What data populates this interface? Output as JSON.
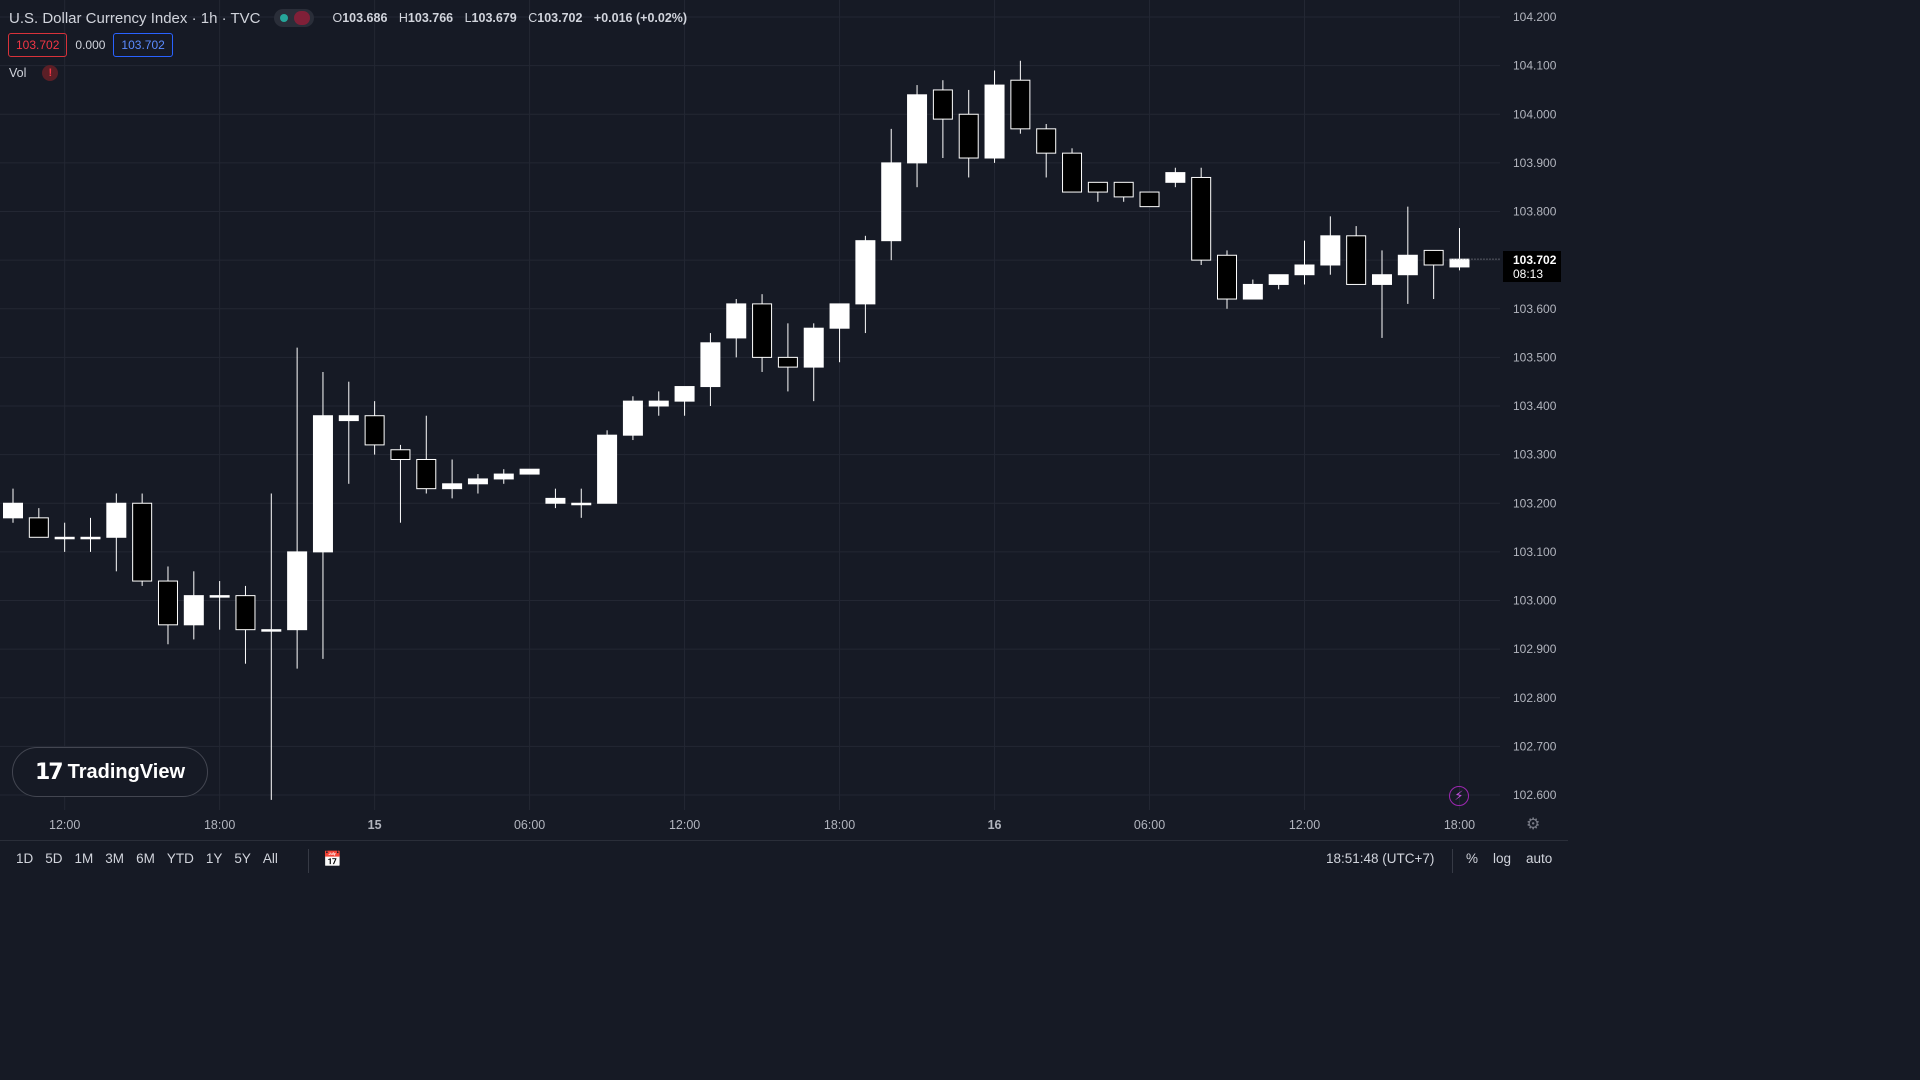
{
  "header": {
    "symbol_title": "U.S. Dollar Currency Index · 1h · TVC",
    "ohlc": {
      "o_label": "O",
      "o": "103.686",
      "h_label": "H",
      "h": "103.766",
      "l_label": "L",
      "l": "103.679",
      "c_label": "C",
      "c": "103.702",
      "change": "+0.016 (+0.02%)"
    },
    "bid": "103.702",
    "spread": "0.000",
    "ask": "103.702",
    "vol_label": "Vol",
    "warning_glyph": "!"
  },
  "logo": {
    "mark": "17",
    "name": "TradingView"
  },
  "price_label": {
    "price": "103.702",
    "countdown": "08:13"
  },
  "bottom_bar": {
    "ranges": [
      "1D",
      "5D",
      "1M",
      "3M",
      "6M",
      "YTD",
      "1Y",
      "5Y",
      "All"
    ],
    "time": "18:51:48 (UTC+7)",
    "options": [
      "%",
      "log",
      "auto"
    ]
  },
  "icons": {
    "calendar": "calendar-range-icon",
    "bolt": "lightning-icon",
    "gear": "settings-gear-icon"
  },
  "colors": {
    "background": "#161a25",
    "up_candle": "#ffffff",
    "down_candle": "#000000",
    "accent_red": "#f23645",
    "accent_blue": "#2962ff",
    "bolt": "#9c27b0"
  },
  "chart_data": {
    "type": "candlestick",
    "title": "U.S. Dollar Currency Index · 1h · TVC",
    "ylim": [
      102.6,
      104.2
    ],
    "y_ticks": [
      "104.200",
      "104.100",
      "104.000",
      "103.900",
      "103.800",
      "103.700",
      "103.600",
      "103.500",
      "103.400",
      "103.300",
      "103.200",
      "103.100",
      "103.000",
      "102.900",
      "102.800",
      "102.700",
      "102.600"
    ],
    "x_ticks": [
      "12:00",
      "18:00",
      "15",
      "06:00",
      "12:00",
      "18:00",
      "16",
      "06:00",
      "12:00",
      "18:00"
    ],
    "x_tick_bar_index": [
      2,
      8,
      14,
      20,
      26,
      32,
      38,
      44,
      50,
      56
    ],
    "grid": true,
    "current_price": 103.702,
    "candles": [
      {
        "o": 103.17,
        "h": 103.23,
        "l": 103.16,
        "c": 103.2
      },
      {
        "o": 103.17,
        "h": 103.19,
        "l": 103.13,
        "c": 103.13
      },
      {
        "o": 103.13,
        "h": 103.16,
        "l": 103.1,
        "c": 103.13
      },
      {
        "o": 103.13,
        "h": 103.17,
        "l": 103.1,
        "c": 103.13
      },
      {
        "o": 103.13,
        "h": 103.22,
        "l": 103.06,
        "c": 103.2
      },
      {
        "o": 103.2,
        "h": 103.22,
        "l": 103.03,
        "c": 103.04
      },
      {
        "o": 103.04,
        "h": 103.07,
        "l": 102.91,
        "c": 102.95
      },
      {
        "o": 102.95,
        "h": 103.06,
        "l": 102.92,
        "c": 103.01
      },
      {
        "o": 103.01,
        "h": 103.04,
        "l": 102.94,
        "c": 103.01
      },
      {
        "o": 103.01,
        "h": 103.03,
        "l": 102.87,
        "c": 102.94
      },
      {
        "o": 102.94,
        "h": 103.22,
        "l": 102.59,
        "c": 102.94
      },
      {
        "o": 102.94,
        "h": 103.52,
        "l": 102.86,
        "c": 103.1
      },
      {
        "o": 103.1,
        "h": 103.47,
        "l": 102.88,
        "c": 103.38
      },
      {
        "o": 103.37,
        "h": 103.45,
        "l": 103.24,
        "c": 103.38
      },
      {
        "o": 103.38,
        "h": 103.41,
        "l": 103.3,
        "c": 103.32
      },
      {
        "o": 103.31,
        "h": 103.32,
        "l": 103.16,
        "c": 103.29
      },
      {
        "o": 103.29,
        "h": 103.38,
        "l": 103.22,
        "c": 103.23
      },
      {
        "o": 103.23,
        "h": 103.29,
        "l": 103.21,
        "c": 103.24
      },
      {
        "o": 103.24,
        "h": 103.26,
        "l": 103.22,
        "c": 103.25
      },
      {
        "o": 103.25,
        "h": 103.27,
        "l": 103.24,
        "c": 103.26
      },
      {
        "o": 103.26,
        "h": 103.27,
        "l": 103.26,
        "c": 103.27
      },
      {
        "o": 103.2,
        "h": 103.23,
        "l": 103.19,
        "c": 103.21
      },
      {
        "o": 103.2,
        "h": 103.23,
        "l": 103.17,
        "c": 103.2
      },
      {
        "o": 103.2,
        "h": 103.35,
        "l": 103.2,
        "c": 103.34
      },
      {
        "o": 103.34,
        "h": 103.42,
        "l": 103.33,
        "c": 103.41
      },
      {
        "o": 103.4,
        "h": 103.43,
        "l": 103.38,
        "c": 103.41
      },
      {
        "o": 103.41,
        "h": 103.43,
        "l": 103.38,
        "c": 103.44
      },
      {
        "o": 103.44,
        "h": 103.55,
        "l": 103.4,
        "c": 103.53
      },
      {
        "o": 103.54,
        "h": 103.62,
        "l": 103.5,
        "c": 103.61
      },
      {
        "o": 103.61,
        "h": 103.63,
        "l": 103.47,
        "c": 103.5
      },
      {
        "o": 103.5,
        "h": 103.57,
        "l": 103.43,
        "c": 103.48
      },
      {
        "o": 103.48,
        "h": 103.57,
        "l": 103.41,
        "c": 103.56
      },
      {
        "o": 103.56,
        "h": 103.6,
        "l": 103.49,
        "c": 103.61
      },
      {
        "o": 103.61,
        "h": 103.75,
        "l": 103.55,
        "c": 103.74
      },
      {
        "o": 103.74,
        "h": 103.97,
        "l": 103.7,
        "c": 103.9
      },
      {
        "o": 103.9,
        "h": 104.06,
        "l": 103.85,
        "c": 104.04
      },
      {
        "o": 104.05,
        "h": 104.07,
        "l": 103.91,
        "c": 103.99
      },
      {
        "o": 104.0,
        "h": 104.05,
        "l": 103.87,
        "c": 103.91
      },
      {
        "o": 103.91,
        "h": 104.09,
        "l": 103.9,
        "c": 104.06
      },
      {
        "o": 104.07,
        "h": 104.11,
        "l": 103.96,
        "c": 103.97
      },
      {
        "o": 103.97,
        "h": 103.98,
        "l": 103.87,
        "c": 103.92
      },
      {
        "o": 103.92,
        "h": 103.93,
        "l": 103.84,
        "c": 103.84
      },
      {
        "o": 103.86,
        "h": 103.86,
        "l": 103.82,
        "c": 103.84
      },
      {
        "o": 103.86,
        "h": 103.86,
        "l": 103.82,
        "c": 103.83
      },
      {
        "o": 103.84,
        "h": 103.84,
        "l": 103.81,
        "c": 103.81
      },
      {
        "o": 103.86,
        "h": 103.89,
        "l": 103.85,
        "c": 103.88
      },
      {
        "o": 103.87,
        "h": 103.89,
        "l": 103.69,
        "c": 103.7
      },
      {
        "o": 103.71,
        "h": 103.72,
        "l": 103.6,
        "c": 103.62
      },
      {
        "o": 103.62,
        "h": 103.66,
        "l": 103.62,
        "c": 103.65
      },
      {
        "o": 103.65,
        "h": 103.67,
        "l": 103.64,
        "c": 103.67
      },
      {
        "o": 103.67,
        "h": 103.74,
        "l": 103.65,
        "c": 103.69
      },
      {
        "o": 103.69,
        "h": 103.79,
        "l": 103.67,
        "c": 103.75
      },
      {
        "o": 103.75,
        "h": 103.77,
        "l": 103.65,
        "c": 103.65
      },
      {
        "o": 103.65,
        "h": 103.72,
        "l": 103.54,
        "c": 103.67
      },
      {
        "o": 103.67,
        "h": 103.81,
        "l": 103.61,
        "c": 103.71
      },
      {
        "o": 103.72,
        "h": 103.72,
        "l": 103.62,
        "c": 103.69
      },
      {
        "o": 103.686,
        "h": 103.766,
        "l": 103.679,
        "c": 103.702
      }
    ]
  }
}
